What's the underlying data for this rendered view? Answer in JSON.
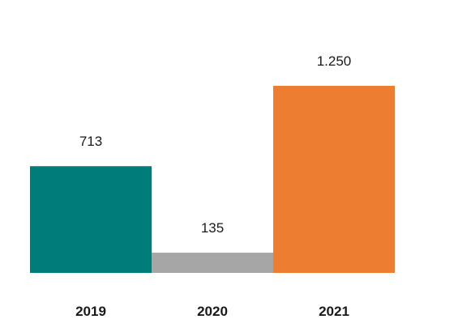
{
  "chart_data": {
    "type": "bar",
    "categories": [
      "2019",
      "2020",
      "2021"
    ],
    "values": [
      713,
      135,
      1250
    ],
    "value_labels": [
      "713",
      "135",
      "1.250"
    ],
    "colors": [
      "#007d7b",
      "#a6a6a6",
      "#ed7d31"
    ],
    "title": "",
    "xlabel": "",
    "ylabel": "",
    "ylim": [
      0,
      1250
    ],
    "grid": false,
    "legend": "none"
  }
}
